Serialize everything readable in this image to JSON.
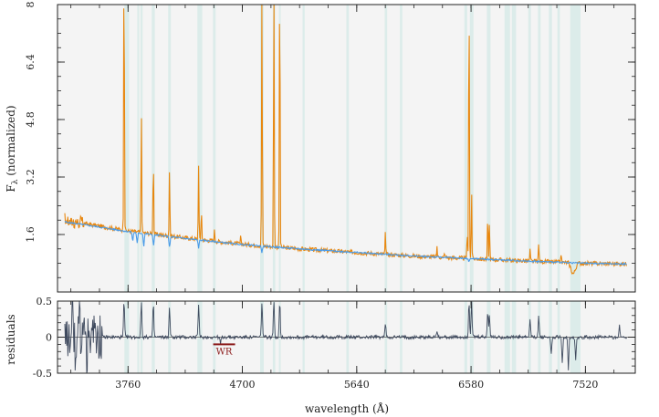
{
  "chart_data": [
    {
      "type": "line",
      "panel": "top",
      "xlabel": "",
      "ylabel": "F_λ (normalized)",
      "ylabel_main": "F",
      "ylabel_sub": "λ",
      "ylabel_rest": " (normalized)",
      "xlim": [
        3180,
        7930
      ],
      "ylim": [
        0,
        8
      ],
      "yticks": [
        1.6,
        3.2,
        4.8,
        6.4,
        8
      ],
      "ytick_labels": [
        "1.6",
        "3.2",
        "4.8",
        "6.4",
        "8"
      ],
      "grid": false,
      "background": "#f4f4f4",
      "series": [
        {
          "color": "#e8870f",
          "role": "observed",
          "continuum": [
            [
              3240,
              2.0
            ],
            [
              3500,
              1.85
            ],
            [
              3760,
              1.7
            ],
            [
              4250,
              1.5
            ],
            [
              4700,
              1.33
            ],
            [
              5170,
              1.2
            ],
            [
              5640,
              1.1
            ],
            [
              6110,
              1.0
            ],
            [
              6580,
              0.93
            ],
            [
              7050,
              0.86
            ],
            [
              7520,
              0.8
            ],
            [
              7860,
              0.78
            ]
          ],
          "emission_lines": [
            [
              3727,
              8.0
            ],
            [
              3869,
              3.4
            ],
            [
              3968,
              2.2
            ],
            [
              4101,
              1.9
            ],
            [
              4340,
              2.1
            ],
            [
              4363,
              0.9
            ],
            [
              4471,
              0.3
            ],
            [
              4686,
              0.2
            ],
            [
              4861,
              8.0
            ],
            [
              4959,
              8.0
            ],
            [
              5007,
              8.0
            ],
            [
              5876,
              0.6
            ],
            [
              6300,
              0.3
            ],
            [
              6363,
              0.15
            ],
            [
              6548,
              0.7
            ],
            [
              6563,
              8.0
            ],
            [
              6584,
              1.9
            ],
            [
              6717,
              1.2
            ],
            [
              6731,
              1.0
            ],
            [
              7065,
              0.3
            ],
            [
              7136,
              0.5
            ],
            [
              7320,
              0.25
            ]
          ]
        },
        {
          "color": "#4a9be8",
          "role": "model",
          "continuum": [
            [
              3240,
              1.95
            ],
            [
              3500,
              1.82
            ],
            [
              3760,
              1.68
            ],
            [
              4250,
              1.48
            ],
            [
              4700,
              1.32
            ],
            [
              5170,
              1.2
            ],
            [
              5640,
              1.1
            ],
            [
              6110,
              1.0
            ],
            [
              6580,
              0.93
            ],
            [
              7050,
              0.86
            ],
            [
              7520,
              0.8
            ],
            [
              7860,
              0.78
            ]
          ],
          "absorption_lines": [
            [
              3798,
              0.25
            ],
            [
              3835,
              0.3
            ],
            [
              3889,
              0.35
            ],
            [
              3970,
              0.3
            ],
            [
              4101,
              0.3
            ],
            [
              4340,
              0.22
            ],
            [
              4861,
              0.18
            ],
            [
              6563,
              0.1
            ]
          ]
        }
      ],
      "masked_bands": [
        [
          3730,
          3768
        ],
        [
          3836,
          3852
        ],
        [
          3862,
          3880
        ],
        [
          3955,
          3980
        ],
        [
          4090,
          4112
        ],
        [
          4330,
          4370
        ],
        [
          4458,
          4480
        ],
        [
          4846,
          4876
        ],
        [
          4950,
          4970
        ],
        [
          5000,
          5015
        ],
        [
          5195,
          5212
        ],
        [
          5555,
          5575
        ],
        [
          5870,
          5890
        ],
        [
          5995,
          6015
        ],
        [
          6525,
          6548
        ],
        [
          6570,
          6600
        ],
        [
          6710,
          6740
        ],
        [
          6855,
          6900
        ],
        [
          6915,
          6950
        ],
        [
          7050,
          7072
        ],
        [
          7130,
          7152
        ],
        [
          7220,
          7245
        ],
        [
          7290,
          7310
        ],
        [
          7395,
          7480
        ]
      ]
    },
    {
      "type": "line",
      "panel": "bottom",
      "xlabel": "wavelength (Å)",
      "ylabel": "residuals",
      "xlim": [
        3180,
        7930
      ],
      "ylim": [
        -0.5,
        0.5
      ],
      "xticks": [
        3760,
        4700,
        5640,
        6580,
        7520
      ],
      "xtick_labels": [
        "3760",
        "4700",
        "5640",
        "6580",
        "7520"
      ],
      "yticks": [
        -0.5,
        0,
        0.5
      ],
      "ytick_labels": [
        "-0.5",
        "0",
        "0.5"
      ],
      "zero_line": true,
      "series": [
        {
          "color": "#3f4a5e",
          "role": "residual",
          "spikes": [
            [
              3300,
              0.5
            ],
            [
              3330,
              -0.45
            ],
            [
              3360,
              0.45
            ],
            [
              3420,
              -0.5
            ],
            [
              3480,
              0.4
            ],
            [
              3727,
              0.5
            ],
            [
              3869,
              0.5
            ],
            [
              3968,
              0.45
            ],
            [
              4101,
              0.4
            ],
            [
              4340,
              0.45
            ],
            [
              4520,
              -0.1
            ],
            [
              4861,
              0.5
            ],
            [
              4959,
              0.5
            ],
            [
              5007,
              0.5
            ],
            [
              5876,
              0.2
            ],
            [
              6300,
              0.1
            ],
            [
              6563,
              0.5
            ],
            [
              6584,
              0.5
            ],
            [
              6717,
              0.35
            ],
            [
              6731,
              0.3
            ],
            [
              7065,
              0.25
            ],
            [
              7136,
              0.3
            ],
            [
              7240,
              -0.25
            ],
            [
              7330,
              -0.35
            ],
            [
              7380,
              -0.45
            ],
            [
              7440,
              -0.3
            ],
            [
              7800,
              0.15
            ]
          ]
        }
      ],
      "annotation": {
        "text": "WR",
        "x_range": [
          4460,
          4640
        ],
        "y": -0.1,
        "color": "#8b1a1a"
      }
    }
  ]
}
